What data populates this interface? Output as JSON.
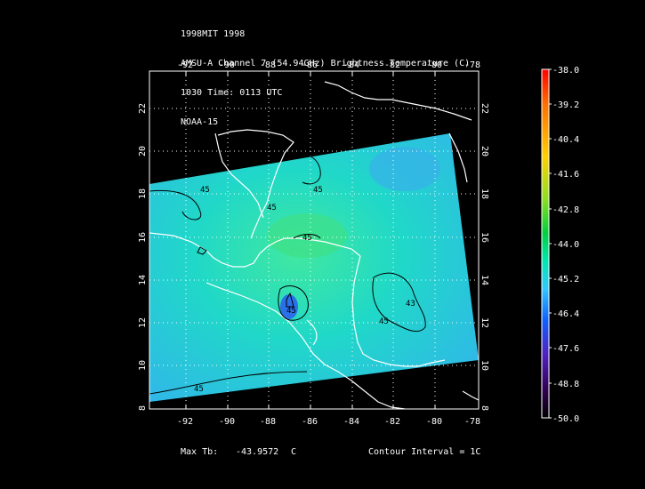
{
  "header": {
    "line1": "1998MIT 1998",
    "line2": "AMSU-A Channel 7 (54.94GHz) Brightness Temperature (C)",
    "line3": "1030 Time: 0113 UTC",
    "line4": "NOAA-15"
  },
  "axes": {
    "lon_ticks": [
      "-92",
      "-90",
      "-88",
      "-86",
      "-84",
      "-82",
      "-80",
      "-78"
    ],
    "lat_ticks": [
      "8",
      "10",
      "12",
      "14",
      "16",
      "18",
      "20",
      "22"
    ]
  },
  "contours": {
    "labels": [
      "45",
      "45",
      "45",
      "45",
      "45",
      "45",
      "45",
      "43"
    ]
  },
  "colorbar": {
    "labels": [
      "-38.0",
      "-39.2",
      "-40.4",
      "-41.6",
      "-42.8",
      "-44.0",
      "-45.2",
      "-46.4",
      "-47.6",
      "-48.8",
      "-50.0"
    ],
    "colors": [
      "#ff0000",
      "#ff8c00",
      "#ffd700",
      "#9acd32",
      "#00cc44",
      "#00e8c0",
      "#30c8ff",
      "#1060ff",
      "#5020c0",
      "#3a0060",
      "#000000"
    ]
  },
  "footer": {
    "max_label": "Max Tb:",
    "max_value": "-43.9572",
    "max_unit": "C",
    "contour_interval": "Contour Interval = 1C"
  }
}
